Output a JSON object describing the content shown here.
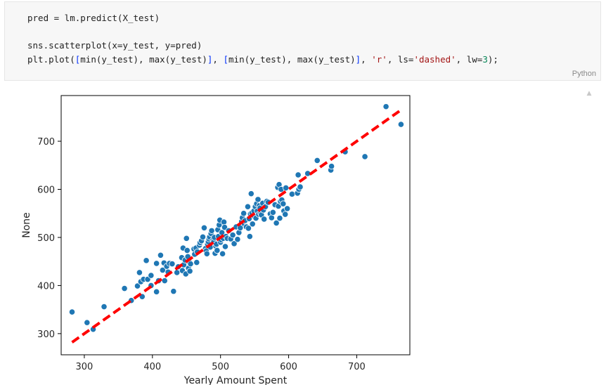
{
  "code_cell": {
    "lines": [
      [
        {
          "t": "pred = lm.predict(X_test)",
          "c": "fn"
        }
      ],
      [],
      [
        {
          "t": "sns.scatterplot(x=y_test, y=pred)",
          "c": "fn"
        }
      ],
      [
        {
          "t": "plt.plot(",
          "c": "fn"
        },
        {
          "t": "[",
          "c": "brk1"
        },
        {
          "t": "min(y_test), max(y_test)",
          "c": "fn"
        },
        {
          "t": "]",
          "c": "brk1"
        },
        {
          "t": ", ",
          "c": "fn"
        },
        {
          "t": "[",
          "c": "brk1"
        },
        {
          "t": "min(y_test), max(y_test)",
          "c": "fn"
        },
        {
          "t": "]",
          "c": "brk1"
        },
        {
          "t": ", ",
          "c": "fn"
        },
        {
          "t": "'r'",
          "c": "str"
        },
        {
          "t": ", ls=",
          "c": "fn"
        },
        {
          "t": "'dashed'",
          "c": "str"
        },
        {
          "t": ", lw=",
          "c": "fn"
        },
        {
          "t": "3",
          "c": "num"
        },
        {
          "t": ");",
          "c": "fn"
        }
      ]
    ],
    "language": "Python"
  },
  "scroll_icon": "▲",
  "chart_data": {
    "type": "scatter",
    "xlabel": "Yearly Amount Spent",
    "ylabel": "None",
    "xlim": [
      266,
      778
    ],
    "ylim": [
      256,
      795
    ],
    "xticks": [
      300,
      400,
      500,
      600,
      700
    ],
    "yticks": [
      300,
      400,
      500,
      600,
      700
    ],
    "grid": false,
    "colors": {
      "points": "#1f77b4",
      "line": "#ff0000"
    },
    "reference_line": {
      "x": [
        282,
        766
      ],
      "y": [
        282,
        766
      ],
      "style": "dashed",
      "color": "r",
      "width": 3
    },
    "points": [
      [
        282,
        345
      ],
      [
        304,
        323
      ],
      [
        313,
        309
      ],
      [
        329,
        356
      ],
      [
        359,
        394
      ],
      [
        369,
        369
      ],
      [
        378,
        399
      ],
      [
        381,
        427
      ],
      [
        383,
        408
      ],
      [
        385,
        377
      ],
      [
        387,
        413
      ],
      [
        391,
        452
      ],
      [
        393,
        413
      ],
      [
        398,
        421
      ],
      [
        398,
        400
      ],
      [
        406,
        387
      ],
      [
        406,
        446
      ],
      [
        409,
        410
      ],
      [
        412,
        463
      ],
      [
        415,
        432
      ],
      [
        417,
        447
      ],
      [
        418,
        410
      ],
      [
        421,
        440
      ],
      [
        423,
        428
      ],
      [
        425,
        446
      ],
      [
        429,
        445
      ],
      [
        431,
        388
      ],
      [
        436,
        427
      ],
      [
        438,
        439
      ],
      [
        443,
        458
      ],
      [
        444,
        431
      ],
      [
        445,
        478
      ],
      [
        446,
        443
      ],
      [
        448,
        453
      ],
      [
        449,
        424
      ],
      [
        450,
        498
      ],
      [
        451,
        473
      ],
      [
        452,
        460
      ],
      [
        453,
        436
      ],
      [
        454,
        449
      ],
      [
        455,
        430
      ],
      [
        456,
        445
      ],
      [
        461,
        476
      ],
      [
        462,
        465
      ],
      [
        464,
        478
      ],
      [
        465,
        448
      ],
      [
        466,
        470
      ],
      [
        469,
        484
      ],
      [
        470,
        489
      ],
      [
        472,
        493
      ],
      [
        474,
        501
      ],
      [
        476,
        520
      ],
      [
        478,
        477
      ],
      [
        479,
        472
      ],
      [
        480,
        466
      ],
      [
        481,
        486
      ],
      [
        482,
        491
      ],
      [
        483,
        497
      ],
      [
        484,
        501
      ],
      [
        485,
        480
      ],
      [
        486,
        508
      ],
      [
        487,
        514
      ],
      [
        489,
        495
      ],
      [
        490,
        491
      ],
      [
        491,
        500
      ],
      [
        492,
        467
      ],
      [
        493,
        482
      ],
      [
        494,
        486
      ],
      [
        495,
        473
      ],
      [
        496,
        516
      ],
      [
        497,
        502
      ],
      [
        498,
        526
      ],
      [
        499,
        536
      ],
      [
        500,
        490
      ],
      [
        501,
        495
      ],
      [
        502,
        510
      ],
      [
        503,
        466
      ],
      [
        504,
        498
      ],
      [
        505,
        532
      ],
      [
        506,
        521
      ],
      [
        507,
        481
      ],
      [
        508,
        502
      ],
      [
        510,
        498
      ],
      [
        512,
        514
      ],
      [
        515,
        497
      ],
      [
        518,
        505
      ],
      [
        520,
        487
      ],
      [
        523,
        522
      ],
      [
        525,
        496
      ],
      [
        527,
        510
      ],
      [
        529,
        520
      ],
      [
        531,
        533
      ],
      [
        532,
        541
      ],
      [
        534,
        550
      ],
      [
        535,
        528
      ],
      [
        536,
        535
      ],
      [
        538,
        522
      ],
      [
        540,
        564
      ],
      [
        541,
        519
      ],
      [
        542,
        539
      ],
      [
        543,
        502
      ],
      [
        544,
        549
      ],
      [
        545,
        591
      ],
      [
        546,
        551
      ],
      [
        547,
        528
      ],
      [
        549,
        555
      ],
      [
        550,
        543
      ],
      [
        551,
        564
      ],
      [
        552,
        540
      ],
      [
        553,
        570
      ],
      [
        554,
        555
      ],
      [
        555,
        579
      ],
      [
        556,
        548
      ],
      [
        557,
        566
      ],
      [
        558,
        561
      ],
      [
        559,
        550
      ],
      [
        560,
        547
      ],
      [
        562,
        571
      ],
      [
        563,
        557
      ],
      [
        564,
        538
      ],
      [
        566,
        564
      ],
      [
        568,
        575
      ],
      [
        570,
        573
      ],
      [
        573,
        549
      ],
      [
        575,
        541
      ],
      [
        577,
        552
      ],
      [
        580,
        568
      ],
      [
        582,
        530
      ],
      [
        584,
        604
      ],
      [
        585,
        565
      ],
      [
        586,
        610
      ],
      [
        587,
        540
      ],
      [
        588,
        575
      ],
      [
        589,
        600
      ],
      [
        590,
        578
      ],
      [
        592,
        570
      ],
      [
        593,
        555
      ],
      [
        595,
        548
      ],
      [
        596,
        603
      ],
      [
        598,
        560
      ],
      [
        605,
        590
      ],
      [
        613,
        592
      ],
      [
        614,
        630
      ],
      [
        615,
        600
      ],
      [
        617,
        605
      ],
      [
        628,
        633
      ],
      [
        642,
        660
      ],
      [
        662,
        640
      ],
      [
        663,
        648
      ],
      [
        683,
        678
      ],
      [
        712,
        668
      ],
      [
        743,
        772
      ],
      [
        765,
        735
      ]
    ]
  }
}
